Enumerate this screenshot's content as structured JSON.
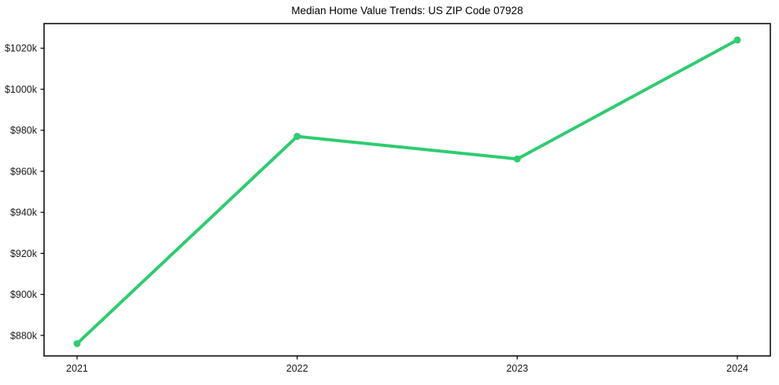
{
  "chart_data": {
    "type": "line",
    "title": "Median Home Value Trends: US ZIP Code 07928",
    "x": [
      2021,
      2022,
      2023,
      2024
    ],
    "values": [
      876,
      977,
      966,
      1024
    ],
    "x_tick_labels": [
      "2021",
      "2022",
      "2023",
      "2024"
    ],
    "y_ticks": [
      {
        "value": 880,
        "label": "$880k"
      },
      {
        "value": 900,
        "label": "$900k"
      },
      {
        "value": 920,
        "label": "$920k"
      },
      {
        "value": 940,
        "label": "$940k"
      },
      {
        "value": 960,
        "label": "$960k"
      },
      {
        "value": 980,
        "label": "$980k"
      },
      {
        "value": 1000,
        "label": "$1000k"
      },
      {
        "value": 1020,
        "label": "$1020k"
      }
    ],
    "xlabel": "",
    "ylabel": "",
    "xlim": [
      2020.85,
      2024.15
    ],
    "ylim": [
      870,
      1032
    ],
    "grid": false,
    "legend": "none",
    "line_color": "#2ecc71",
    "marker_color": "#2ecc71",
    "axis_color": "#000000",
    "text_color": "#1a1a1a",
    "background_color": "#ffffff"
  }
}
